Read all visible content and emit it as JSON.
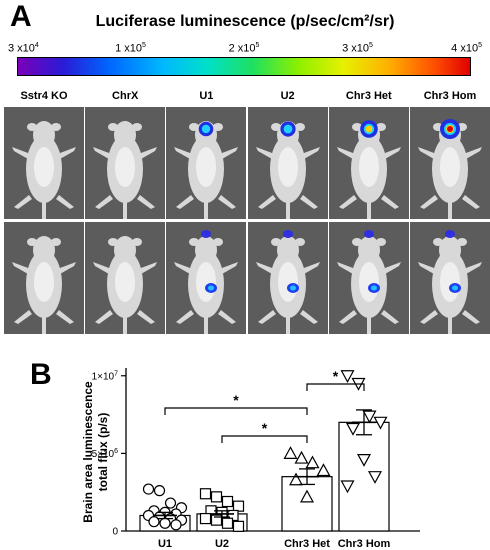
{
  "panel_a": {
    "letter": "A",
    "colorbar": {
      "title": "Luciferase luminescence (p/sec/cm²/sr)",
      "ticks": [
        {
          "mant": "3 x10",
          "exp": "4"
        },
        {
          "mant": "1 x10",
          "exp": "5"
        },
        {
          "mant": "2 x10",
          "exp": "5"
        },
        {
          "mant": "3 x10",
          "exp": "5"
        },
        {
          "mant": "4 x10",
          "exp": "5"
        }
      ]
    },
    "columns": [
      "Sstr4 KO",
      "ChrX",
      "U1",
      "U2",
      "Chr3 Het",
      "Chr3 Hom"
    ],
    "brain_signal": [
      0,
      0,
      0.55,
      0.6,
      0.8,
      1.0
    ]
  },
  "panel_b": {
    "letter": "B",
    "chart_data": {
      "type": "bar",
      "ylabel_line1": "Brain area luminescence",
      "ylabel_line2": "total flux (p/s)",
      "ylim": [
        0,
        10500000
      ],
      "yticks": [
        {
          "value": 0,
          "label": "0",
          "exp": ""
        },
        {
          "value": 5000000,
          "label": "5×10",
          "exp": "6"
        },
        {
          "value": 10000000,
          "label": "1×10",
          "exp": "7"
        }
      ],
      "categories": [
        "U1",
        "U2",
        "Chr3 Het",
        "Chr3 Hom"
      ],
      "means": [
        1000000,
        1100000,
        3500000,
        7000000
      ],
      "sem": [
        200000,
        200000,
        500000,
        800000
      ],
      "markers": [
        "circle",
        "square",
        "triangle-up",
        "triangle-down"
      ],
      "points": [
        [
          2700000,
          2600000,
          1800000,
          1500000,
          1300000,
          1200000,
          1100000,
          1000000,
          900000,
          800000,
          700000,
          600000,
          500000,
          400000
        ],
        [
          2400000,
          2200000,
          1900000,
          1600000,
          1300000,
          1200000,
          1000000,
          800000,
          700000,
          500000,
          300000
        ],
        [
          5000000,
          4700000,
          4400000,
          3900000,
          3300000,
          2200000
        ],
        [
          10000000,
          9500000,
          7400000,
          7000000,
          6600000,
          4600000,
          3500000,
          2900000
        ]
      ],
      "significance": [
        {
          "from": 0,
          "to": 2,
          "label": "*"
        },
        {
          "from": 1,
          "to": 2,
          "label": "*"
        },
        {
          "from": 2,
          "to": 3,
          "label": "*"
        }
      ]
    }
  }
}
